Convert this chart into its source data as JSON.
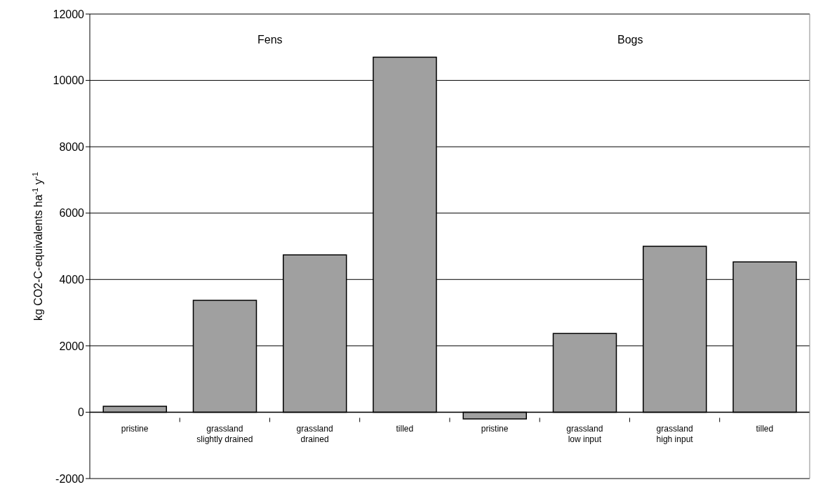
{
  "chart_data": {
    "type": "bar",
    "ylabel": "kg CO2-C-equivalents ha$^{-1}$ y$^{-1}$",
    "annotations": [
      "Fens",
      "Bogs"
    ],
    "categories": [
      "pristine",
      "grassland slightly drained",
      "grassland drained",
      "tilled",
      "pristine",
      "grassland low input",
      "grassland high input",
      "tilled"
    ],
    "values": [
      180,
      3370,
      4740,
      10700,
      -200,
      2370,
      5000,
      4530
    ],
    "color": "#a0a0a0",
    "ylim": [
      -2000,
      12000
    ],
    "yticks": [
      -2000,
      0,
      2000,
      4000,
      6000,
      8000,
      10000,
      12000
    ],
    "grid": "y",
    "legend": false
  }
}
